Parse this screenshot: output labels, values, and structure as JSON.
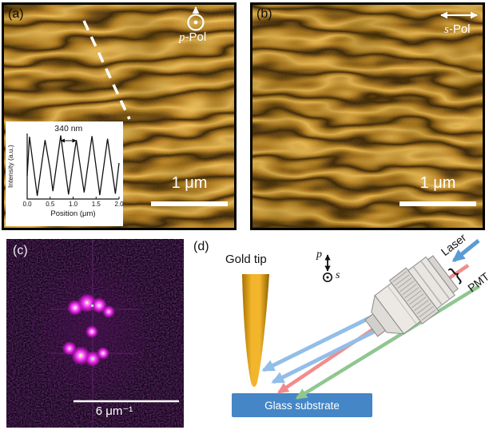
{
  "panels": {
    "a": {
      "label": "(a)",
      "pol_italic": "p",
      "pol_rest": "-Pol",
      "scale_label": "1 μm"
    },
    "b": {
      "label": "(b)",
      "pol_italic": "s",
      "pol_rest": "-Pol",
      "scale_label": "1 μm"
    },
    "c": {
      "label": "(c)",
      "scale_label": "6 μm⁻¹"
    },
    "d": {
      "label": "(d)",
      "tip_label": "Gold tip",
      "laser_label": "Laser",
      "pmt_label": "PMT",
      "brace": "}",
      "pol_p": "p",
      "pol_s": "s",
      "substrate_label": "Glass substrate"
    }
  },
  "chart_data": {
    "type": "line",
    "xlabel": "Position (μm)",
    "ylabel": "Intensity (a.u.)",
    "xlim": [
      0,
      2.0
    ],
    "xticks": [
      "0.0",
      "0.5",
      "1.0",
      "1.5",
      "2.0"
    ],
    "annotation": "340 nm",
    "annotation_span_um": [
      0.73,
      1.07
    ],
    "fringe_period_nm": 340,
    "points": [
      [
        0,
        0.35
      ],
      [
        0.05,
        0.95
      ],
      [
        0.22,
        0.05
      ],
      [
        0.39,
        0.9
      ],
      [
        0.5,
        0.45
      ],
      [
        0.56,
        0.12
      ],
      [
        0.73,
        0.97
      ],
      [
        0.9,
        0.07
      ],
      [
        1.07,
        0.9
      ],
      [
        1.24,
        0.1
      ],
      [
        1.41,
        0.96
      ],
      [
        1.58,
        0.06
      ],
      [
        1.75,
        0.92
      ],
      [
        1.92,
        0.08
      ],
      [
        2.0,
        0.55
      ]
    ]
  },
  "colors": {
    "gold_bright": "#F2C35C",
    "gold_mid": "#B97F1E",
    "gold_dark": "#2E1A02",
    "spot_magenta": "#FF4DFF",
    "fft_background": "#0B0310",
    "substrate_blue": "#4586C6",
    "beam_blue": "#92BEE8",
    "laser_blue": "#5B9BD5",
    "beam_red": "#F28C8C",
    "beam_green": "#90C690",
    "tip_gold": "#F3B52B"
  }
}
